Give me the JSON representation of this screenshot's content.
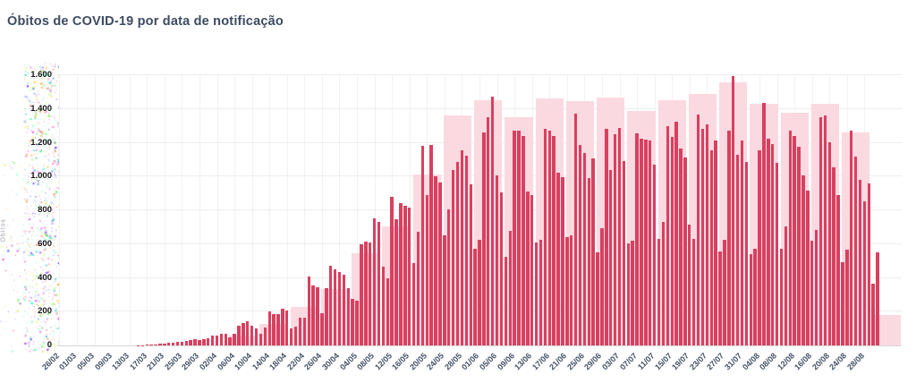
{
  "title": "Óbitos de COVID-19 por data de notificação",
  "colors": {
    "daily_bar": "#d8405f",
    "weekly_band": "#fbd9e1",
    "grid_horizontal": "#ededed",
    "grid_vertical": "#f4f1f2",
    "axis_baseline": "#d6d6d6",
    "title_text": "#3d4b61",
    "x_tick_text": "#42516e",
    "y_tick_text": "#161616",
    "background": "#ffffff"
  },
  "chart_data": {
    "type": "bar",
    "title": "Óbitos de COVID-19 por data de notificação",
    "xlabel": "",
    "ylabel": "Óbitos",
    "ylim": [
      0,
      1600
    ],
    "y_ticks": [
      "0",
      "200",
      "400",
      "600",
      "800",
      "1.000",
      "1.200",
      "1.400",
      "1.600"
    ],
    "grid": true,
    "legend": "none",
    "domain_days": 193,
    "start_date": "26/02",
    "end_date": "31/08",
    "x_tick_every_days": 4,
    "x_tick_labels": [
      "26/02",
      "01/03",
      "05/03",
      "09/03",
      "13/03",
      "17/03",
      "21/03",
      "25/03",
      "29/03",
      "02/04",
      "06/04",
      "10/04",
      "14/04",
      "18/04",
      "22/04",
      "26/04",
      "30/04",
      "04/05",
      "08/05",
      "12/05",
      "16/05",
      "20/05",
      "24/05",
      "28/05",
      "01/06",
      "05/06",
      "09/06",
      "13/06",
      "17/06",
      "21/06",
      "25/06",
      "29/06",
      "03/07",
      "07/07",
      "11/07",
      "15/07",
      "19/07",
      "23/07",
      "27/07",
      "31/07",
      "04/08",
      "08/08",
      "12/08",
      "16/08",
      "20/08",
      "24/08",
      "28/08"
    ],
    "series": [
      {
        "name": "obitos_diarios",
        "type": "bar",
        "start_day_index": 0,
        "values": [
          0,
          0,
          0,
          0,
          0,
          0,
          0,
          0,
          0,
          0,
          0,
          0,
          0,
          0,
          0,
          0,
          0,
          0,
          1,
          2,
          4,
          5,
          7,
          9,
          12,
          15,
          18,
          22,
          23,
          26,
          30,
          35,
          33,
          38,
          42,
          56,
          58,
          69,
          68,
          50,
          67,
          114,
          133,
          141,
          115,
          99,
          68,
          105,
          204,
          188,
          188,
          217,
          206,
          103,
          113,
          166,
          165,
          407,
          357,
          346,
          189,
          338,
          474,
          449,
          435,
          421,
          339,
          275,
          263,
          600,
          615,
          610,
          751,
          730,
          467,
          396,
          881,
          749,
          844,
          824,
          816,
          485,
          674,
          1179,
          888,
          1188,
          1001,
          965,
          653,
          807,
          1039,
          1086,
          1156,
          1124,
          956,
          572,
          623,
          1262,
          1349,
          1473,
          1005,
          904,
          525,
          679,
          1272,
          1274,
          1239,
          909,
          892,
          612,
          627,
          1282,
          1269,
          1238,
          1022,
          997,
          641,
          654,
          1374,
          1185,
          1141,
          990,
          1109,
          552,
          692,
          1280,
          1038,
          1252,
          1290,
          1091,
          602,
          620,
          1254,
          1223,
          1220,
          1214,
          1071,
          631,
          733,
          1300,
          1233,
          1322,
          1163,
          1111,
          716,
          632,
          1367,
          1284,
          1311,
          1156,
          1211,
          555,
          627,
          1271,
          1595,
          1129,
          1212,
          1088,
          541,
          572,
          1154,
          1437,
          1226,
          1191,
          1079,
          572,
          703,
          1274,
          1242,
          1175,
          1006,
          914,
          620,
          684,
          1352,
          1364,
          1204,
          1054,
          892,
          494,
          565,
          1271,
          1116,
          982,
          855,
          957,
          366,
          553
        ]
      },
      {
        "name": "faixa_semanal",
        "type": "wide-bar",
        "week_start_day_index": 39,
        "week_length_days": 7,
        "values": [
          60,
          125,
          230,
          335,
          545,
          705,
          1010,
          1360,
          1450,
          1350,
          1460,
          1445,
          1470,
          1390,
          1450,
          1490,
          1560,
          1430,
          1375,
          1430,
          1260,
          180
        ]
      }
    ]
  }
}
